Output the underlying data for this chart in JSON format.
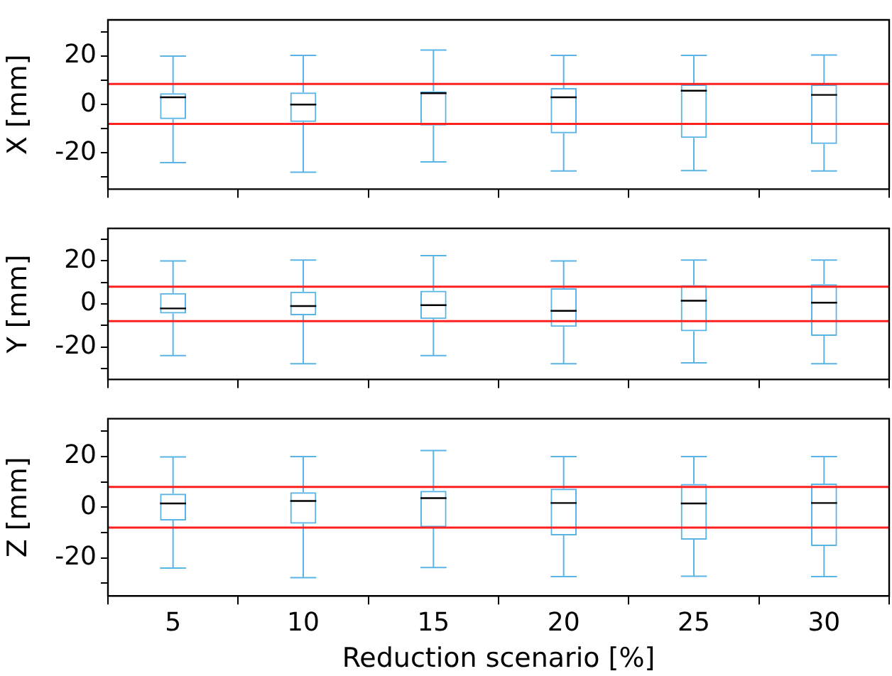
{
  "chart_data": [
    {
      "type": "box",
      "ylabel": "X [mm]",
      "categories": [
        "5",
        "10",
        "15",
        "20",
        "25",
        "30"
      ],
      "color": "#5ab4e6",
      "tick_labels": "y",
      "ylim": [
        -35,
        35
      ],
      "yticks": [
        {
          "value": -30,
          "label": null
        },
        -20,
        {
          "value": -10,
          "label": null
        },
        0,
        {
          "value": 10,
          "label": null
        },
        20,
        {
          "value": 30,
          "label": null
        }
      ],
      "grid": false,
      "boxes": [
        {
          "low": -24,
          "q1": -6,
          "median": 3,
          "q3": 4.7,
          "high": 20
        },
        {
          "low": -28,
          "q1": -7.2,
          "median": 0,
          "q3": 5,
          "high": 20.3
        },
        {
          "low": -23.7,
          "q1": -8.7,
          "median": 4.7,
          "q3": 5.5,
          "high": 22.5
        },
        {
          "low": -27.5,
          "q1": -11.9,
          "median": 3,
          "q3": 6.8,
          "high": 20.3
        },
        {
          "low": -27.3,
          "q1": -13.8,
          "median": 5.7,
          "q3": 8.3,
          "high": 20.3
        },
        {
          "low": -27.5,
          "q1": -16.3,
          "median": 4,
          "q3": 8.3,
          "high": 20.5
        }
      ],
      "ref_lines": [
        {
          "axis": "y",
          "value": 8.5,
          "color": "#ff2020"
        },
        {
          "axis": "y",
          "value": -8,
          "color": "#ff2020"
        }
      ]
    },
    {
      "type": "box",
      "ylabel": "Y [mm]",
      "categories": [
        "5",
        "10",
        "15",
        "20",
        "25",
        "30"
      ],
      "color": "#5ab4e6",
      "tick_labels": "y",
      "ylim": [
        -35,
        35
      ],
      "yticks": [
        {
          "value": -30,
          "label": null
        },
        -20,
        {
          "value": -10,
          "label": null
        },
        0,
        {
          "value": 10,
          "label": null
        },
        20,
        {
          "value": 30,
          "label": null
        }
      ],
      "grid": false,
      "boxes": [
        {
          "low": -23.9,
          "q1": -4.4,
          "median": -2.1,
          "q3": 5,
          "high": 19.9
        },
        {
          "low": -27.7,
          "q1": -5.3,
          "median": -1,
          "q3": 5.7,
          "high": 20.3
        },
        {
          "low": -23.9,
          "q1": -7,
          "median": -0.6,
          "q3": 6.1,
          "high": 22.4
        },
        {
          "low": -27.7,
          "q1": -10.6,
          "median": -3.2,
          "q3": 7.2,
          "high": 19.9
        },
        {
          "low": -27.3,
          "q1": -12.7,
          "median": 1.5,
          "q3": 8.7,
          "high": 20.3
        },
        {
          "low": -27.7,
          "q1": -14.8,
          "median": 0.6,
          "q3": 9.1,
          "high": 20.3
        }
      ],
      "ref_lines": [
        {
          "axis": "y",
          "value": 8,
          "color": "#ff2020"
        },
        {
          "axis": "y",
          "value": -8,
          "color": "#ff2020"
        }
      ]
    },
    {
      "type": "box",
      "ylabel": "Z [mm]",
      "xlabel": "Reduction scenario [%]",
      "categories": [
        "5",
        "10",
        "15",
        "20",
        "25",
        "30"
      ],
      "color": "#5ab4e6",
      "ylim": [
        -35,
        35
      ],
      "yticks": [
        {
          "value": -30,
          "label": null
        },
        -20,
        {
          "value": -10,
          "label": null
        },
        0,
        {
          "value": 10,
          "label": null
        },
        20,
        {
          "value": 30,
          "label": null
        }
      ],
      "grid": false,
      "boxes": [
        {
          "low": -24,
          "q1": -5.2,
          "median": 1.5,
          "q3": 5.4,
          "high": 19.9
        },
        {
          "low": -27.8,
          "q1": -6.5,
          "median": 2.5,
          "q3": 5.9,
          "high": 20
        },
        {
          "low": -23.8,
          "q1": -7.9,
          "median": 3.6,
          "q3": 6.5,
          "high": 22.4
        },
        {
          "low": -27.4,
          "q1": -11.1,
          "median": 1.7,
          "q3": 7.3,
          "high": 20
        },
        {
          "low": -27.2,
          "q1": -12.8,
          "median": 1.5,
          "q3": 9.2,
          "high": 20
        },
        {
          "low": -27.4,
          "q1": -15.3,
          "median": 1.7,
          "q3": 9.4,
          "high": 20
        }
      ],
      "ref_lines": [
        {
          "axis": "y",
          "value": 8,
          "color": "#ff2020"
        },
        {
          "axis": "y",
          "value": -8,
          "color": "#ff2020"
        }
      ]
    }
  ]
}
